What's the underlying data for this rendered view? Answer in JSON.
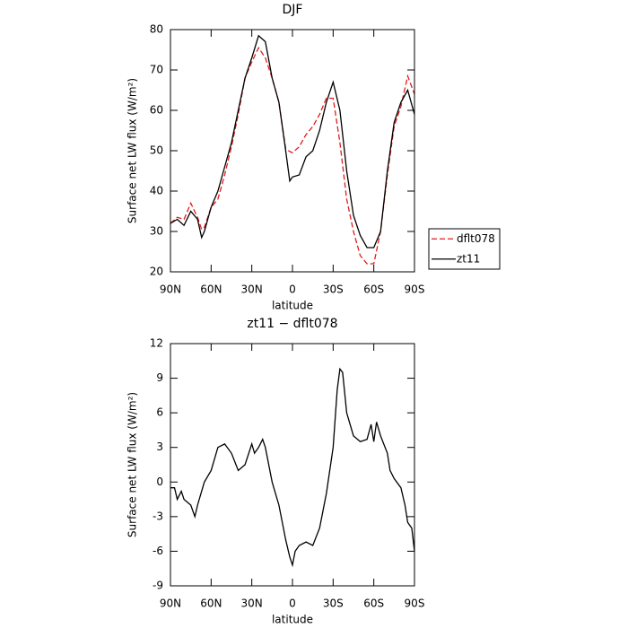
{
  "chart_data": [
    {
      "type": "line",
      "title": "DJF",
      "xlabel": "latitude",
      "ylabel": "Surface net LW flux (W/m²)",
      "x": [
        90,
        85,
        80,
        75,
        70,
        67,
        65,
        60,
        55,
        50,
        45,
        40,
        35,
        30,
        25,
        20,
        15,
        10,
        5,
        2,
        0,
        -5,
        -10,
        -15,
        -20,
        -25,
        -30,
        -35,
        -40,
        -45,
        -50,
        -55,
        -60,
        -65,
        -70,
        -75,
        -80,
        -85,
        -90
      ],
      "series": [
        {
          "name": "dflt078",
          "color": "#e31a1c",
          "dash": true,
          "values": [
            32,
            33.5,
            33,
            37,
            33.5,
            30.5,
            31,
            36,
            38,
            44,
            51,
            59,
            68,
            72,
            75.5,
            73,
            68,
            62,
            50.5,
            49.8,
            49.5,
            51,
            54,
            56,
            59,
            63,
            63,
            52,
            38,
            30,
            24,
            22,
            22,
            30,
            44,
            56,
            61,
            68.5,
            64
          ]
        },
        {
          "name": "zt11",
          "color": "#000000",
          "dash": false,
          "values": [
            32,
            33,
            31.5,
            35,
            33,
            28.5,
            30,
            36,
            40,
            46,
            52,
            60,
            68,
            73,
            78.5,
            77,
            68,
            62,
            50,
            42.5,
            43.5,
            44,
            48.5,
            50,
            55,
            62,
            67,
            60,
            45,
            34,
            29,
            26,
            26,
            30,
            45,
            57,
            62,
            65,
            59
          ]
        }
      ],
      "xlim": [
        90,
        -90
      ],
      "xticks": [
        {
          "value": 90,
          "label": "90N"
        },
        {
          "value": 60,
          "label": "60N"
        },
        {
          "value": 30,
          "label": "30N"
        },
        0,
        {
          "value": -30,
          "label": "30S"
        },
        {
          "value": -60,
          "label": "60S"
        },
        {
          "value": -90,
          "label": "90S"
        }
      ],
      "ylim": [
        20,
        80
      ],
      "yticks": [
        20,
        30,
        40,
        50,
        60,
        70,
        80
      ],
      "legend": "right"
    },
    {
      "type": "line",
      "title": "zt11 − dflt078",
      "xlabel": "latitude",
      "ylabel": "Surface net LW flux (W/m²)",
      "x": [
        90,
        87,
        85,
        82,
        80,
        75,
        72,
        70,
        65,
        60,
        55,
        50,
        45,
        40,
        35,
        30,
        28,
        25,
        22,
        20,
        15,
        10,
        5,
        2,
        0,
        -2,
        -5,
        -10,
        -15,
        -20,
        -25,
        -30,
        -33,
        -35,
        -37,
        -40,
        -45,
        -50,
        -55,
        -58,
        -60,
        -62,
        -65,
        -70,
        -72,
        -75,
        -80,
        -83,
        -85,
        -88,
        -90
      ],
      "series": [
        {
          "color": "#000000",
          "dash": false,
          "values": [
            -0.5,
            -0.5,
            -1.5,
            -0.8,
            -1.5,
            -2,
            -3,
            -2,
            0,
            1,
            3,
            3.3,
            2.5,
            1,
            1.5,
            3.3,
            2.5,
            3,
            3.7,
            3,
            0,
            -2,
            -5,
            -6.5,
            -7.2,
            -6,
            -5.5,
            -5.2,
            -5.5,
            -4,
            -1,
            3,
            8,
            9.8,
            9.5,
            6,
            4,
            3.5,
            3.7,
            5,
            3.5,
            5.2,
            4,
            2.5,
            1,
            0.3,
            -0.5,
            -2,
            -3.5,
            -4,
            -6
          ]
        }
      ],
      "xlim": [
        90,
        -90
      ],
      "xticks": [
        {
          "value": 90,
          "label": "90N"
        },
        {
          "value": 60,
          "label": "60N"
        },
        {
          "value": 30,
          "label": "30N"
        },
        0,
        {
          "value": -30,
          "label": "30S"
        },
        {
          "value": -60,
          "label": "60S"
        },
        {
          "value": -90,
          "label": "90S"
        }
      ],
      "ylim": [
        -9,
        12
      ],
      "yticks": [
        -9,
        -6,
        -3,
        0,
        3,
        6,
        9,
        12
      ]
    }
  ]
}
